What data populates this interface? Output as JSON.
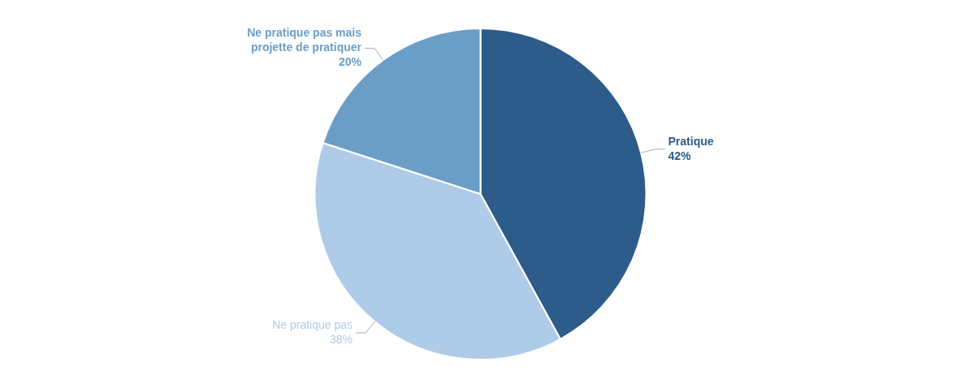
{
  "chart_data": {
    "type": "pie",
    "categories": [
      "Pratique",
      "Ne pratique pas",
      "Ne pratique pas mais\nprojette de pratiquer"
    ],
    "values": [
      42,
      38,
      20
    ],
    "value_labels": [
      "42%",
      "38%",
      "20%"
    ],
    "colors": [
      "#2E5C8A",
      "#AECCE8",
      "#6B9EC7"
    ],
    "data_labels": true
  }
}
